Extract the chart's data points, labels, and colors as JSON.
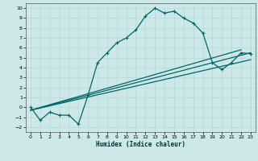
{
  "xlabel": "Humidex (Indice chaleur)",
  "ylabel": "",
  "bg_color": "#cce8e8",
  "grid_color": "#b8d8d8",
  "line_color": "#006666",
  "xlim": [
    -0.5,
    23.5
  ],
  "ylim": [
    -2.5,
    10.5
  ],
  "xticks": [
    0,
    1,
    2,
    3,
    4,
    5,
    6,
    7,
    8,
    9,
    10,
    11,
    12,
    13,
    14,
    15,
    16,
    17,
    18,
    19,
    20,
    21,
    22,
    23
  ],
  "yticks": [
    -2,
    -1,
    0,
    1,
    2,
    3,
    4,
    5,
    6,
    7,
    8,
    9,
    10
  ],
  "curve1_x": [
    0,
    1,
    2,
    3,
    4,
    5,
    6,
    7,
    8,
    9,
    10,
    11,
    12,
    13,
    14,
    15,
    16,
    17,
    18,
    19,
    20,
    21,
    22,
    23
  ],
  "curve1_y": [
    0.0,
    -1.3,
    -0.5,
    -0.8,
    -0.8,
    -1.7,
    1.2,
    4.5,
    5.5,
    6.5,
    7.0,
    7.8,
    9.2,
    10.0,
    9.5,
    9.7,
    9.0,
    8.5,
    7.5,
    4.5,
    3.8,
    4.5,
    5.5,
    5.4
  ],
  "line2_x": [
    0,
    23
  ],
  "line2_y": [
    -0.3,
    5.5
  ],
  "line3_x": [
    0,
    23
  ],
  "line3_y": [
    -0.3,
    4.8
  ],
  "line4_x": [
    0,
    22
  ],
  "line4_y": [
    -0.3,
    5.8
  ],
  "marker": "+"
}
